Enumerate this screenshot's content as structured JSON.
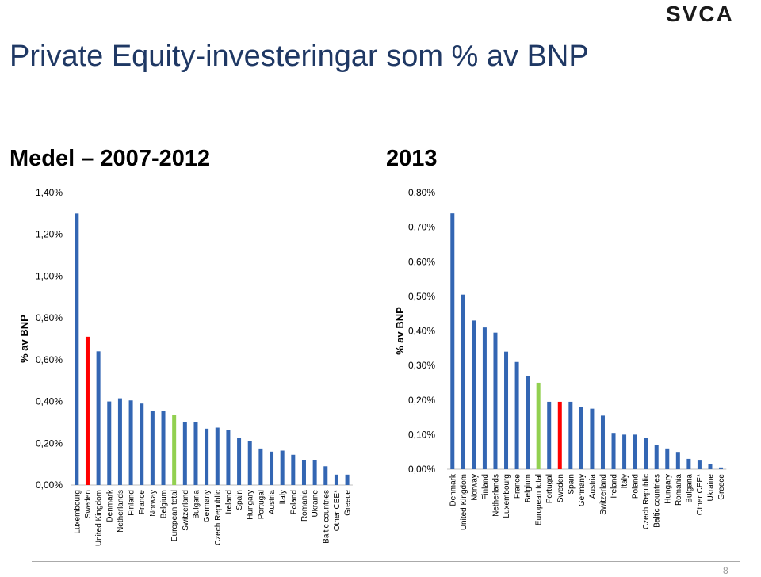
{
  "title": "Private Equity-investeringar som % av BNP",
  "logo_text": "SVCA",
  "page_number": "8",
  "colors": {
    "bar": "#3366b3",
    "highlight_sweden": "#ff0000",
    "highlight_european": "#92d050",
    "title": "#1f3864"
  },
  "chart_data": [
    {
      "type": "bar",
      "title": "Medel – 2007-2012",
      "ylabel": "% av BNP",
      "xlabel": "",
      "ylim": [
        0,
        1.4
      ],
      "yticks": [
        0,
        0.2,
        0.4,
        0.6,
        0.8,
        1.0,
        1.2,
        1.4
      ],
      "ytick_labels": [
        "0,00%",
        "0,20%",
        "0,40%",
        "0,60%",
        "0,80%",
        "1,00%",
        "1,20%",
        "1,40%"
      ],
      "grid": false,
      "categories": [
        "Luxembourg",
        "Sweden",
        "United Kingdom",
        "Denmark",
        "Netherlands",
        "Finland",
        "France",
        "Norway",
        "Belgium",
        "European total",
        "Switzerland",
        "Bulgaria",
        "Germany",
        "Czech Republic",
        "Ireland",
        "Spain",
        "Hungary",
        "Portugal",
        "Austria",
        "Italy",
        "Poland",
        "Romania",
        "Ukraine",
        "Baltic countries",
        "Other CEE*",
        "Greece"
      ],
      "values": [
        1.3,
        0.71,
        0.64,
        0.4,
        0.415,
        0.405,
        0.39,
        0.355,
        0.355,
        0.335,
        0.3,
        0.3,
        0.27,
        0.275,
        0.265,
        0.225,
        0.21,
        0.175,
        0.16,
        0.165,
        0.145,
        0.12,
        0.12,
        0.09,
        0.05,
        0.05
      ],
      "highlight": {
        "Sweden": "#ff0000",
        "European total": "#92d050"
      }
    },
    {
      "type": "bar",
      "title": "2013",
      "ylabel": "% av BNP",
      "xlabel": "",
      "ylim": [
        0,
        0.8
      ],
      "yticks": [
        0,
        0.1,
        0.2,
        0.3,
        0.4,
        0.5,
        0.6,
        0.7,
        0.8
      ],
      "ytick_labels": [
        "0,00%",
        "0,10%",
        "0,20%",
        "0,30%",
        "0,40%",
        "0,50%",
        "0,60%",
        "0,70%",
        "0,80%"
      ],
      "grid": false,
      "categories": [
        "Denmark",
        "United Kingdom",
        "Norway",
        "Finland",
        "Netherlands",
        "Luxembourg",
        "France",
        "Belgium",
        "European total",
        "Portugal",
        "Sweden",
        "Spain",
        "Germany",
        "Austria",
        "Switzerland",
        "Ireland",
        "Italy",
        "Poland",
        "Czech Republic",
        "Baltic countries",
        "Hungary",
        "Romania",
        "Bulgaria",
        "Other CEE*",
        "Ukraine",
        "Greece"
      ],
      "values": [
        0.74,
        0.505,
        0.43,
        0.41,
        0.395,
        0.34,
        0.31,
        0.27,
        0.25,
        0.195,
        0.195,
        0.195,
        0.18,
        0.175,
        0.155,
        0.105,
        0.1,
        0.1,
        0.09,
        0.07,
        0.06,
        0.05,
        0.03,
        0.025,
        0.015,
        0.005
      ],
      "highlight": {
        "Sweden": "#ff0000",
        "European total": "#92d050"
      }
    }
  ]
}
